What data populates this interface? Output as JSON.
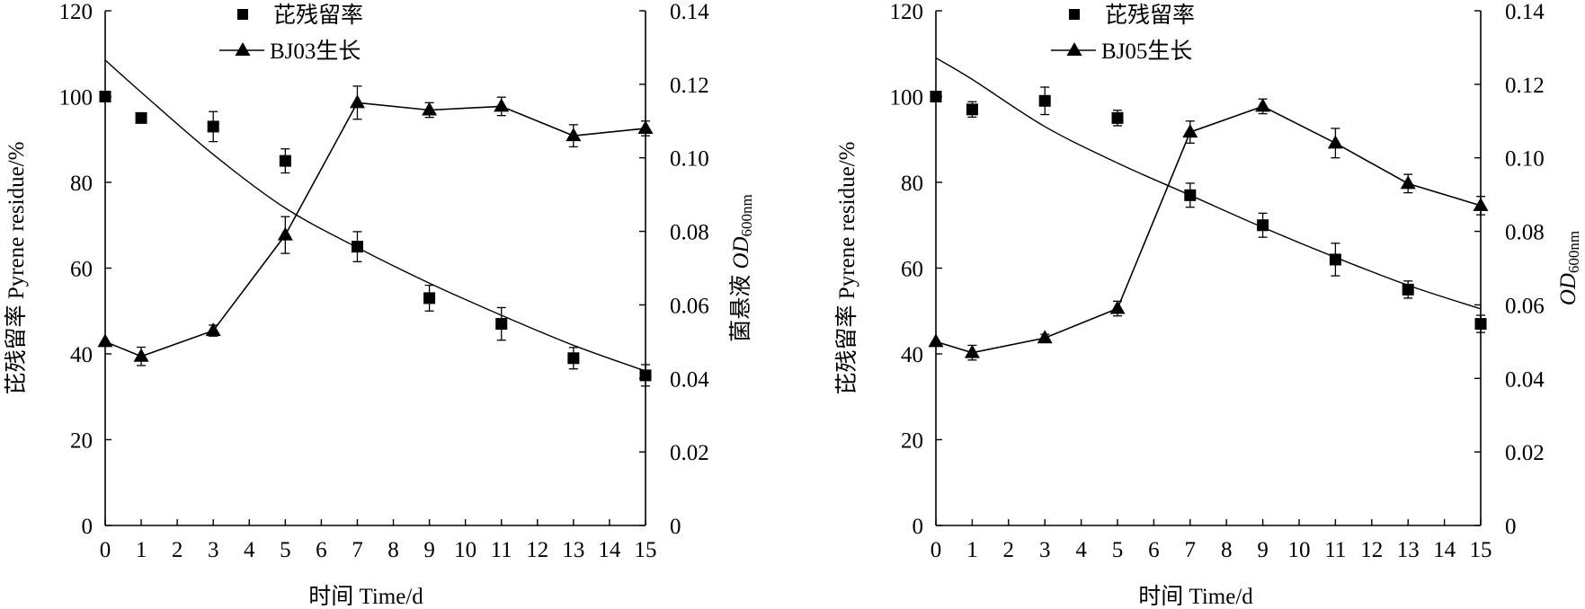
{
  "chart_data": [
    {
      "type": "scatter",
      "x": [
        0,
        1,
        3,
        5,
        7,
        9,
        11,
        13,
        15
      ],
      "xlabel": "时间 Time/d",
      "xlim": [
        0,
        15
      ],
      "xticks": [
        "0",
        "1",
        "2",
        "3",
        "4",
        "5",
        "6",
        "7",
        "8",
        "9",
        "10",
        "11",
        "12",
        "13",
        "14",
        "15"
      ],
      "ylabel": "芘残留率 Pyrene residue/%",
      "ylim": [
        0,
        120
      ],
      "yticks": [
        "0",
        "20",
        "40",
        "60",
        "80",
        "100",
        "120"
      ],
      "y2label_prefix": "菌悬液 ",
      "y2label_main": "OD",
      "y2label_sub": "600nm",
      "y2lim": [
        0,
        0.14
      ],
      "y2ticks": [
        "0",
        "0.02",
        "0.04",
        "0.06",
        "0.08",
        "0.10",
        "0.12",
        "0.14"
      ],
      "legend_position": "top-center",
      "series": [
        {
          "name": "芘残留率",
          "marker": "square",
          "axis": "left",
          "values": [
            100,
            95,
            93,
            85,
            65,
            53,
            47,
            39,
            35
          ],
          "errors": [
            0,
            0,
            3.5,
            2.8,
            3.5,
            3,
            3.8,
            2.5,
            2.5
          ]
        },
        {
          "name": "BJ03生长",
          "marker": "triangle",
          "axis": "right",
          "connected": true,
          "values": [
            0.05,
            0.046,
            0.053,
            0.079,
            0.115,
            0.113,
            0.114,
            0.106,
            0.108
          ],
          "errors": [
            0,
            0.0025,
            0.0015,
            0.005,
            0.0045,
            0.002,
            0.0025,
            0.003,
            0.002
          ]
        },
        {
          "name": "",
          "kind": "fit-curve",
          "axis": "left",
          "x": [
            0,
            1,
            3,
            5,
            7,
            9,
            11,
            13,
            15
          ],
          "values": [
            108.5,
            101,
            86.5,
            74,
            64.8,
            56.5,
            49,
            42,
            36
          ]
        }
      ]
    },
    {
      "type": "scatter",
      "x": [
        0,
        1,
        3,
        5,
        7,
        9,
        11,
        13,
        15
      ],
      "xlabel": "时间 Time/d",
      "xlim": [
        0,
        15
      ],
      "xticks": [
        "0",
        "1",
        "2",
        "3",
        "4",
        "5",
        "6",
        "7",
        "8",
        "9",
        "10",
        "11",
        "12",
        "13",
        "14",
        "15"
      ],
      "ylabel": "芘残留率 Pyrene residue/%",
      "ylim": [
        0,
        120
      ],
      "yticks": [
        "0",
        "20",
        "40",
        "60",
        "80",
        "100",
        "120"
      ],
      "y2label_prefix": "",
      "y2label_main": "OD",
      "y2label_sub": "600nm",
      "y2lim": [
        0,
        0.14
      ],
      "y2ticks": [
        "0",
        "0.02",
        "0.04",
        "0.06",
        "0.08",
        "0.10",
        "0.12",
        "0.14"
      ],
      "legend_position": "top-center",
      "series": [
        {
          "name": "芘残留率",
          "marker": "square",
          "axis": "left",
          "values": [
            100,
            97,
            99,
            95,
            77,
            70,
            62,
            55,
            47
          ],
          "errors": [
            0,
            1.8,
            3.2,
            1.8,
            2.8,
            2.8,
            3.8,
            2,
            2
          ]
        },
        {
          "name": "BJ05生长",
          "marker": "triangle",
          "axis": "right",
          "connected": true,
          "values": [
            0.05,
            0.047,
            0.051,
            0.059,
            0.107,
            0.114,
            0.104,
            0.093,
            0.087
          ],
          "errors": [
            0,
            0.002,
            0.001,
            0.002,
            0.003,
            0.002,
            0.004,
            0.0025,
            0.0025
          ]
        },
        {
          "name": "",
          "kind": "fit-curve",
          "axis": "left",
          "x": [
            0,
            1,
            3,
            5,
            7,
            9,
            11,
            13,
            15
          ],
          "values": [
            109,
            104,
            93,
            84.5,
            77,
            69.5,
            62.5,
            56,
            50.5
          ]
        }
      ]
    }
  ]
}
